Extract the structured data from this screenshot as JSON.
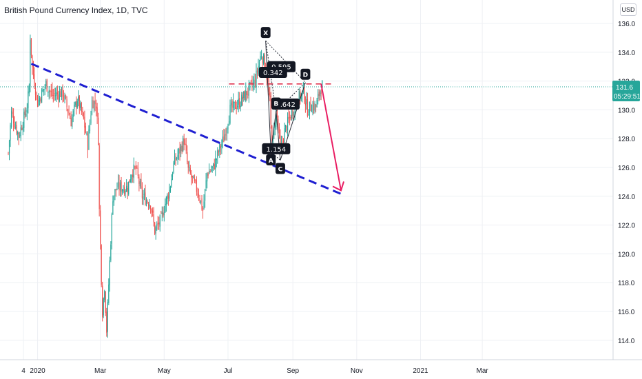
{
  "header": {
    "title": "British Pound Currency Index, 1D, TVC",
    "currency_button": "USD"
  },
  "price_badge": {
    "price": "131.6",
    "countdown": "05:29:51"
  },
  "colors": {
    "up": "#26a69a",
    "down": "#ef5350",
    "trendline": "#1f1fd1",
    "resistance": "#e0344f",
    "arrow": "#e91e63",
    "price_line": "#26a69a",
    "badge": "#26a69a"
  },
  "chart_data": {
    "type": "candlestick",
    "y_axis": {
      "ticks": [
        "136.0",
        "134.0",
        "132.0",
        "130.0",
        "128.0",
        "126.0",
        "124.0",
        "122.0",
        "120.0",
        "118.0",
        "116.0",
        "114.0"
      ],
      "range": [
        112.6,
        136.8
      ]
    },
    "x_axis": {
      "ticks": [
        {
          "label": "4",
          "day": 0
        },
        {
          "label": "2020",
          "day": 28
        },
        {
          "label": "Mar",
          "day": 88
        },
        {
          "label": "May",
          "day": 149
        },
        {
          "label": "Jul",
          "day": 210
        },
        {
          "label": "Sep",
          "day": 272
        },
        {
          "label": "Nov",
          "day": 333
        },
        {
          "label": "2021",
          "day": 394
        },
        {
          "label": "Mar",
          "day": 453
        }
      ]
    },
    "last_price": 131.6,
    "anchors": [
      [
        0,
        127.0
      ],
      [
        3,
        129.8
      ],
      [
        10,
        128.2
      ],
      [
        18,
        130.2
      ],
      [
        20,
        131.6
      ],
      [
        21,
        135.1
      ],
      [
        23,
        132.9
      ],
      [
        28,
        130.5
      ],
      [
        36,
        131.8
      ],
      [
        42,
        131.0
      ],
      [
        52,
        131.2
      ],
      [
        60,
        129.2
      ],
      [
        66,
        130.8
      ],
      [
        72,
        129.3
      ],
      [
        76,
        127.6
      ],
      [
        80,
        130.6
      ],
      [
        84,
        130.4
      ],
      [
        86,
        128.0
      ],
      [
        87,
        123.0
      ],
      [
        88,
        120.6
      ],
      [
        90,
        116.0
      ],
      [
        92,
        117.8
      ],
      [
        94,
        114.7
      ],
      [
        96,
        117.9
      ],
      [
        98,
        121.0
      ],
      [
        100,
        124.0
      ],
      [
        104,
        124.6
      ],
      [
        114,
        124.6
      ],
      [
        118,
        125.7
      ],
      [
        122,
        125.9
      ],
      [
        128,
        124.0
      ],
      [
        136,
        123.5
      ],
      [
        140,
        121.6
      ],
      [
        146,
        122.4
      ],
      [
        150,
        123.5
      ],
      [
        154,
        124.4
      ],
      [
        158,
        126.2
      ],
      [
        164,
        127.2
      ],
      [
        168,
        127.9
      ],
      [
        172,
        125.8
      ],
      [
        178,
        124.8
      ],
      [
        182,
        124.2
      ],
      [
        186,
        123.0
      ],
      [
        190,
        125.6
      ],
      [
        196,
        126.0
      ],
      [
        202,
        127.3
      ],
      [
        206,
        128.0
      ],
      [
        212,
        130.0
      ],
      [
        222,
        130.6
      ],
      [
        230,
        131.4
      ],
      [
        236,
        132.0
      ],
      [
        240,
        133.4
      ],
      [
        242,
        133.9
      ],
      [
        246,
        133.0
      ],
      [
        250,
        130.5
      ],
      [
        252,
        127.1
      ],
      [
        254,
        128.6
      ],
      [
        256,
        130.0
      ],
      [
        258,
        128.8
      ],
      [
        260,
        127.1
      ],
      [
        264,
        128.5
      ],
      [
        270,
        129.6
      ],
      [
        276,
        130.7
      ],
      [
        282,
        131.2
      ],
      [
        286,
        130.0
      ],
      [
        290,
        130.3
      ],
      [
        294,
        130.2
      ],
      [
        298,
        131.4
      ],
      [
        300,
        131.7
      ]
    ],
    "trendlines": [
      {
        "name": "descending-trendline",
        "from": [
          22,
          133.2
        ],
        "to": [
          320,
          124.1
        ],
        "style": "dashed"
      },
      {
        "name": "resistance-line",
        "from": [
          211,
          131.8
        ],
        "to": [
          309,
          131.8
        ],
        "style": "dashed"
      }
    ],
    "projection_arrow": {
      "from": [
        299,
        131.8
      ],
      "to": [
        318,
        124.4
      ]
    },
    "harmonic_pattern": {
      "points": [
        {
          "label": "X",
          "day": 246,
          "value": 134.8
        },
        {
          "label": "A",
          "day": 251,
          "value": 127.1
        },
        {
          "label": "B",
          "day": 256,
          "value": 129.9
        },
        {
          "label": "C",
          "day": 260,
          "value": 126.5
        },
        {
          "label": "D",
          "day": 284,
          "value": 131.9
        }
      ],
      "ratios": [
        {
          "label": "0.595",
          "day": 261,
          "value": 133.0
        },
        {
          "label": "0.342",
          "day": 253,
          "value": 132.6
        },
        {
          "label": "1.642",
          "day": 265,
          "value": 130.4
        },
        {
          "label": "1.154",
          "day": 256,
          "value": 127.3
        }
      ]
    }
  }
}
